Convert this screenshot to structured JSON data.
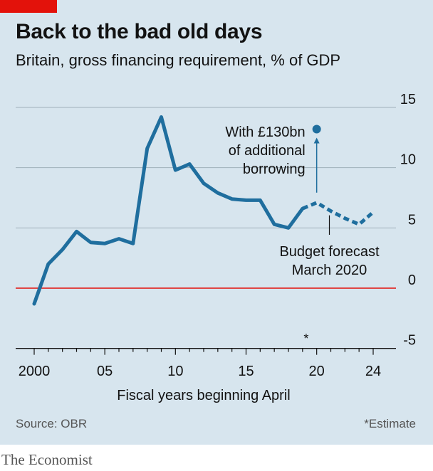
{
  "header": {
    "title": "Back to the bad old days",
    "subtitle": "Britain, gross financing requirement, % of GDP"
  },
  "footer": {
    "source": "Source: OBR",
    "footnote": "*Estimate",
    "brand": "The Economist"
  },
  "colors": {
    "background": "#d7e5ee",
    "line": "#1f6e9e",
    "zero_line": "#e3120b",
    "grid": "#9fb0ba",
    "brand_red": "#e3120b"
  },
  "chart_data": {
    "type": "line",
    "title": "Back to the bad old days",
    "subtitle": "Britain, gross financing requirement, % of GDP",
    "xlabel": "Fiscal years beginning April",
    "ylabel": "",
    "xlim": [
      2000,
      2024
    ],
    "ylim": [
      -5,
      15
    ],
    "y_ticks": [
      {
        "value": 15,
        "label": "15"
      },
      {
        "value": 10,
        "label": "10"
      },
      {
        "value": 5,
        "label": "5"
      },
      {
        "value": 0,
        "label": "0"
      },
      {
        "value": -5,
        "label": "-5"
      }
    ],
    "x_ticks": [
      {
        "value": 2000,
        "label": "2000"
      },
      {
        "value": 2005,
        "label": "05"
      },
      {
        "value": 2010,
        "label": "10"
      },
      {
        "value": 2015,
        "label": "15"
      },
      {
        "value": 2020,
        "label": "20"
      },
      {
        "value": 2024,
        "label": "24"
      }
    ],
    "x_tick_marks": [
      2000,
      2001,
      2002,
      2003,
      2004,
      2005,
      2006,
      2007,
      2008,
      2009,
      2010,
      2011,
      2012,
      2013,
      2014,
      2015,
      2016,
      2017,
      2018,
      2019,
      2020,
      2021,
      2022,
      2023,
      2024
    ],
    "estimate_marker": {
      "x": 2019,
      "label": "*"
    },
    "grid": true,
    "series": [
      {
        "style": "solid",
        "x": [
          2000,
          2001,
          2002,
          2003,
          2004,
          2005,
          2006,
          2007,
          2008,
          2009,
          2010,
          2011,
          2012,
          2013,
          2014,
          2015,
          2016,
          2017,
          2018,
          2019
        ],
        "values": [
          -1.3,
          2.0,
          3.2,
          4.7,
          3.8,
          3.7,
          4.1,
          3.7,
          11.6,
          14.2,
          9.8,
          10.3,
          8.7,
          7.9,
          7.4,
          7.3,
          7.3,
          5.3,
          5.0,
          6.6
        ]
      },
      {
        "style": "dashed",
        "x": [
          2019,
          2020,
          2021,
          2022,
          2023,
          2024
        ],
        "values": [
          6.6,
          7.1,
          6.4,
          5.8,
          5.3,
          6.3
        ]
      }
    ],
    "points": [
      {
        "x": 2020,
        "y": 13.2
      }
    ],
    "annotations": [
      {
        "x": 2020,
        "y": 13.2,
        "lines": [
          "With £130bn",
          "of additional",
          "borrowing"
        ]
      },
      {
        "x": 2021,
        "y": 6.4,
        "lines": [
          "Budget forecast",
          "March 2020"
        ]
      }
    ]
  }
}
